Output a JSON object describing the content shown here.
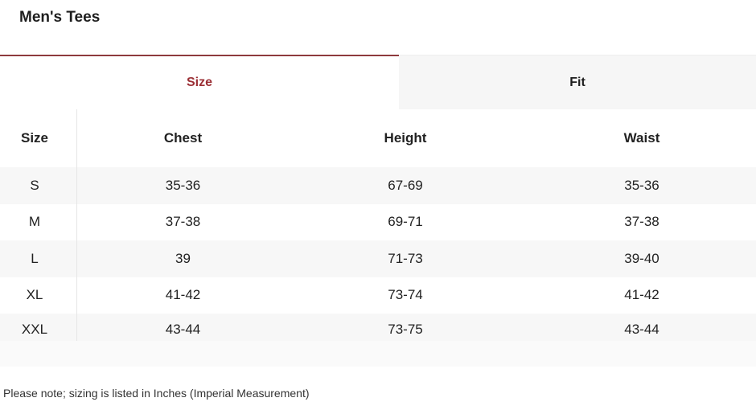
{
  "title": "Men's Tees",
  "tabs": [
    {
      "label": "Size",
      "active": true
    },
    {
      "label": "Fit",
      "active": false
    }
  ],
  "colors": {
    "accent": "#9b2f35",
    "row_alt": "#f7f7f7",
    "inactive_tab": "#f6f6f6"
  },
  "table": {
    "headers": [
      "Size",
      "Chest",
      "Height",
      "Waist"
    ],
    "rows": [
      [
        "S",
        "35-36",
        "67-69",
        "35-36"
      ],
      [
        "M",
        "37-38",
        "69-71",
        "37-38"
      ],
      [
        "L",
        "39",
        "71-73",
        "39-40"
      ],
      [
        "XL",
        "41-42",
        "73-74",
        "41-42"
      ],
      [
        "XXL",
        "43-44",
        "73-75",
        "43-44"
      ]
    ]
  },
  "note": "Please note; sizing is listed in Inches (Imperial Measurement)"
}
